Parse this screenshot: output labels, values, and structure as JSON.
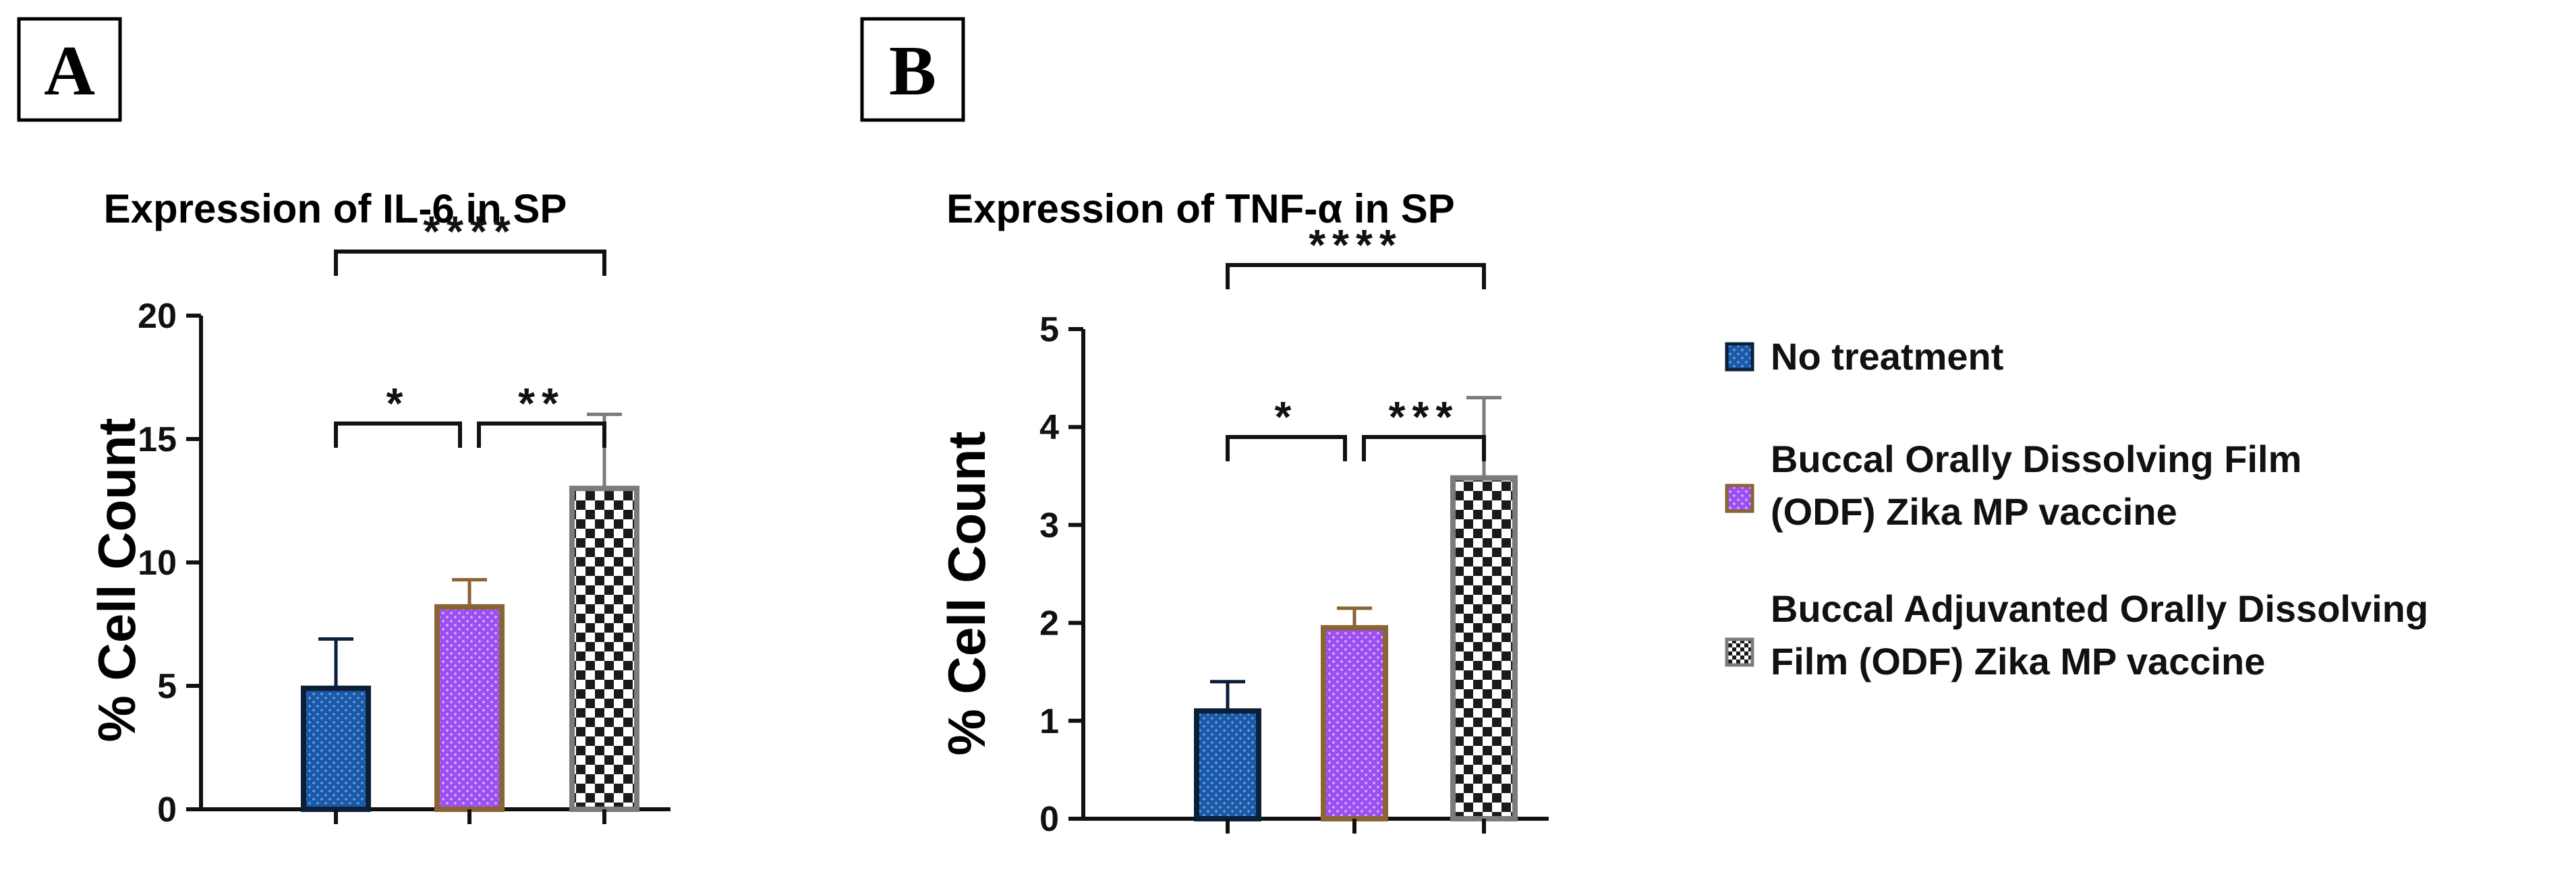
{
  "chart_data": [
    {
      "type": "bar",
      "panel": "A",
      "title": "Expression of IL-6 in SP",
      "ylabel": "% Cell Count",
      "xlabel": "",
      "ylim": [
        0,
        20
      ],
      "yticks": [
        0,
        5,
        10,
        15,
        20
      ],
      "categories": [
        "No treatment",
        "Buccal Orally Dissolving Film (ODF) Zika MP vaccine",
        "Buccal Adjuvanted Orally Dissolving Film (ODF) Zika MP vaccine"
      ],
      "values": [
        4.9,
        8.2,
        13.0
      ],
      "errors": [
        2.0,
        1.1,
        3.0
      ],
      "significance": [
        {
          "from": 0,
          "to": 1,
          "label": "*"
        },
        {
          "from": 1,
          "to": 2,
          "label": "**"
        },
        {
          "from": 0,
          "to": 2,
          "label": "****"
        }
      ]
    },
    {
      "type": "bar",
      "panel": "B",
      "title": "Expression of TNF-α in SP",
      "ylabel": "% Cell Count",
      "xlabel": "",
      "ylim": [
        0,
        5
      ],
      "yticks": [
        0,
        1,
        2,
        3,
        4,
        5
      ],
      "categories": [
        "No treatment",
        "Buccal Orally Dissolving Film (ODF) Zika MP vaccine",
        "Buccal Adjuvanted Orally Dissolving Film (ODF) Zika MP vaccine"
      ],
      "values": [
        1.1,
        1.95,
        3.48
      ],
      "errors": [
        0.3,
        0.2,
        0.82
      ],
      "significance": [
        {
          "from": 0,
          "to": 1,
          "label": "*"
        },
        {
          "from": 1,
          "to": 2,
          "label": "***"
        },
        {
          "from": 0,
          "to": 2,
          "label": "****"
        }
      ]
    }
  ],
  "legend": {
    "placement": "right",
    "items": [
      {
        "lines": [
          "No treatment"
        ],
        "fill": "blue-dots",
        "color": "#1b5aa8",
        "border": "#0b1f3a"
      },
      {
        "lines": [
          "Buccal Orally Dissolving Film",
          "(ODF) Zika MP vaccine"
        ],
        "fill": "purple-dots",
        "color": "#9b4ff0",
        "border": "#8a6434"
      },
      {
        "lines": [
          "Buccal Adjuvanted Orally Dissolving",
          "Film (ODF) Zika MP vaccine"
        ],
        "fill": "checker",
        "color": "#222222",
        "border": "#7b7b7b"
      }
    ]
  },
  "colors": {
    "bar1": "#1b5aa8",
    "bar1_border": "#0b1f3a",
    "bar2": "#9b4ff0",
    "bar2_border": "#8a6434",
    "bar3_border": "#7b7b7b",
    "axis": "#111111"
  }
}
